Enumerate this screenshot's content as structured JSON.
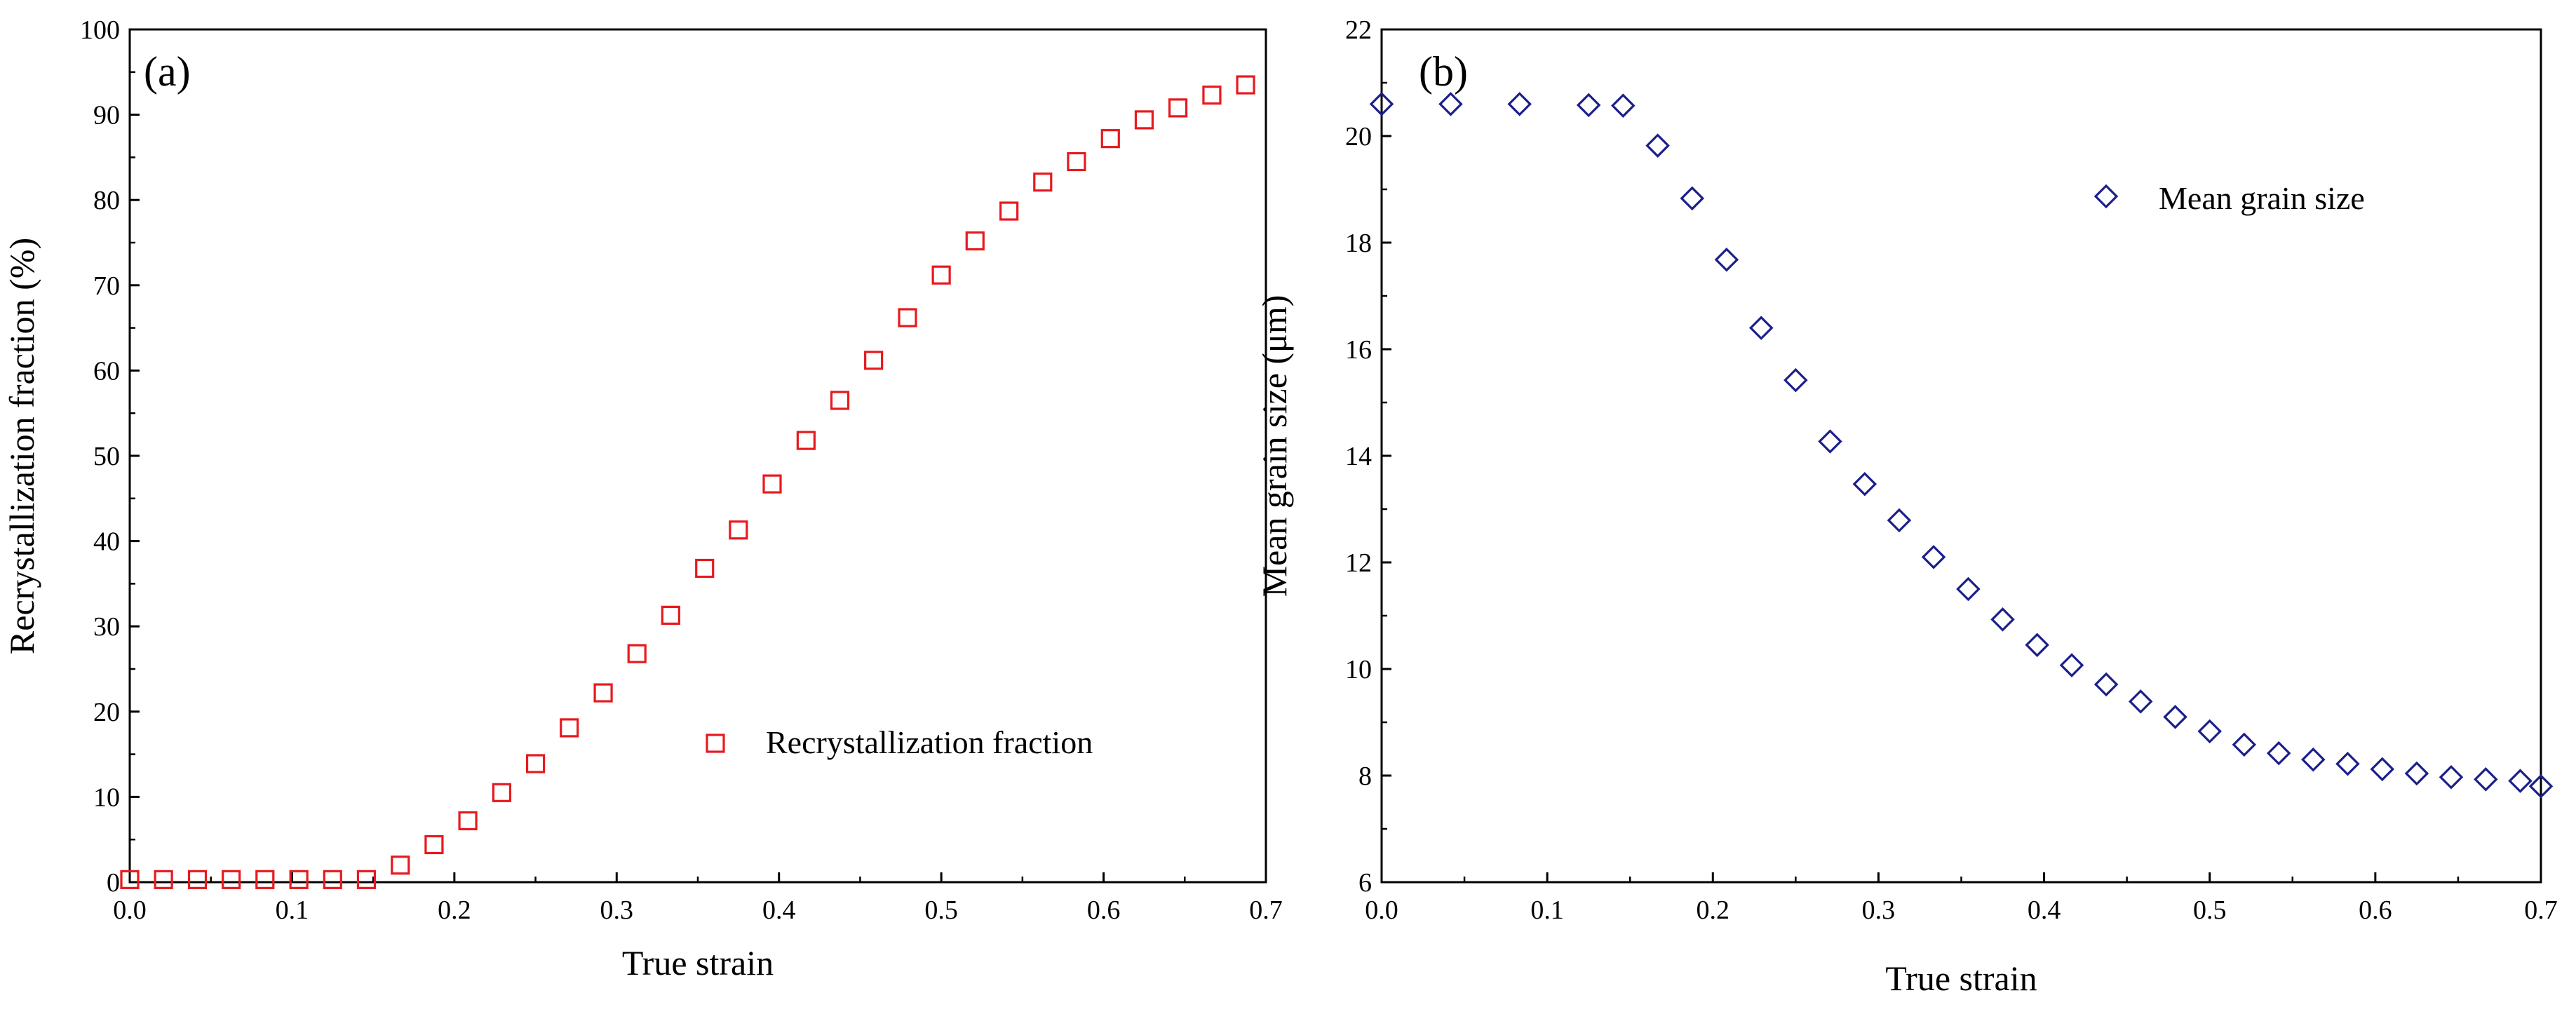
{
  "chart_data": [
    {
      "type": "scatter",
      "panel_label": "(a)",
      "xlabel": "True strain",
      "ylabel": "Recrystallization fraction (%)",
      "xlim": [
        0,
        0.7
      ],
      "ylim": [
        0,
        100
      ],
      "xticks": [
        "0.0",
        "0.1",
        "0.2",
        "0.3",
        "0.4",
        "0.5",
        "0.6",
        "0.7"
      ],
      "yticks": [
        "0",
        "10",
        "20",
        "30",
        "40",
        "50",
        "60",
        "70",
        "80",
        "90",
        "100"
      ],
      "legend": "top-right-inside",
      "marker": "square",
      "color": "#e8191e",
      "series": [
        {
          "name": "Recrystallization fraction",
          "x": [
            0.0,
            0.0208,
            0.0417,
            0.0625,
            0.0833,
            0.1042,
            0.125,
            0.1458,
            0.1667,
            0.1875,
            0.2083,
            0.2292,
            0.25,
            0.2708,
            0.2917,
            0.3125,
            0.3333,
            0.3542,
            0.375,
            0.3958,
            0.4167,
            0.4375,
            0.4583,
            0.4792,
            0.5,
            0.5208,
            0.5417,
            0.5625,
            0.5833,
            0.6042,
            0.625,
            0.6458,
            0.6667,
            0.6875
          ],
          "y": [
            0.3,
            0.3,
            0.3,
            0.3,
            0.3,
            0.3,
            0.3,
            0.3,
            2.0,
            4.4,
            7.2,
            10.5,
            13.9,
            18.1,
            22.2,
            26.8,
            31.3,
            36.8,
            41.3,
            46.7,
            51.8,
            56.5,
            61.2,
            66.2,
            71.2,
            75.2,
            78.7,
            82.1,
            84.5,
            87.2,
            89.4,
            90.8,
            92.3,
            93.5
          ]
        }
      ]
    },
    {
      "type": "scatter",
      "panel_label": "(b)",
      "xlabel": "True strain",
      "ylabel": "Mean grain size (μm)",
      "xlim": [
        0,
        0.7
      ],
      "ylim": [
        6,
        22
      ],
      "xticks": [
        "0.0",
        "0.1",
        "0.2",
        "0.3",
        "0.4",
        "0.5",
        "0.6",
        "0.7"
      ],
      "yticks": [
        "6",
        "8",
        "10",
        "12",
        "14",
        "16",
        "18",
        "20",
        "22"
      ],
      "legend": "top-right-inside",
      "marker": "diamond",
      "color": "#1b1f8a",
      "series": [
        {
          "name": "Mean grain size",
          "x": [
            0.0,
            0.0417,
            0.0833,
            0.125,
            0.1458,
            0.1667,
            0.1875,
            0.2083,
            0.2292,
            0.25,
            0.2708,
            0.2917,
            0.3125,
            0.3333,
            0.3542,
            0.375,
            0.3958,
            0.4167,
            0.4375,
            0.4583,
            0.4792,
            0.5,
            0.5208,
            0.5417,
            0.5625,
            0.5833,
            0.6042,
            0.625,
            0.6458,
            0.6667,
            0.6875,
            0.7
          ],
          "y": [
            20.6,
            20.6,
            20.6,
            20.58,
            20.57,
            19.82,
            18.83,
            17.68,
            16.4,
            15.42,
            14.27,
            13.47,
            12.79,
            12.1,
            11.5,
            10.93,
            10.45,
            10.07,
            9.71,
            9.39,
            9.1,
            8.83,
            8.58,
            8.42,
            8.3,
            8.22,
            8.12,
            8.04,
            7.97,
            7.93,
            7.9,
            7.8
          ]
        }
      ]
    }
  ]
}
